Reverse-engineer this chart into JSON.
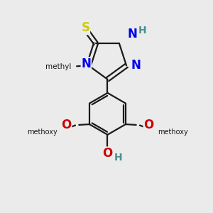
{
  "background_color": "#ebebeb",
  "bond_color": "#1a1a1a",
  "bond_width": 1.6,
  "S_color": "#cccc00",
  "N_color": "#0000ee",
  "NH_color": "#4a9090",
  "O_color": "#cc0000",
  "OH_color": "#cc0000",
  "H_color": "#4a9090",
  "text_color": "#1a1a1a",
  "figsize": [
    3.0,
    3.0
  ],
  "dpi": 100,
  "xlim": [
    0,
    10
  ],
  "ylim": [
    0,
    10
  ]
}
